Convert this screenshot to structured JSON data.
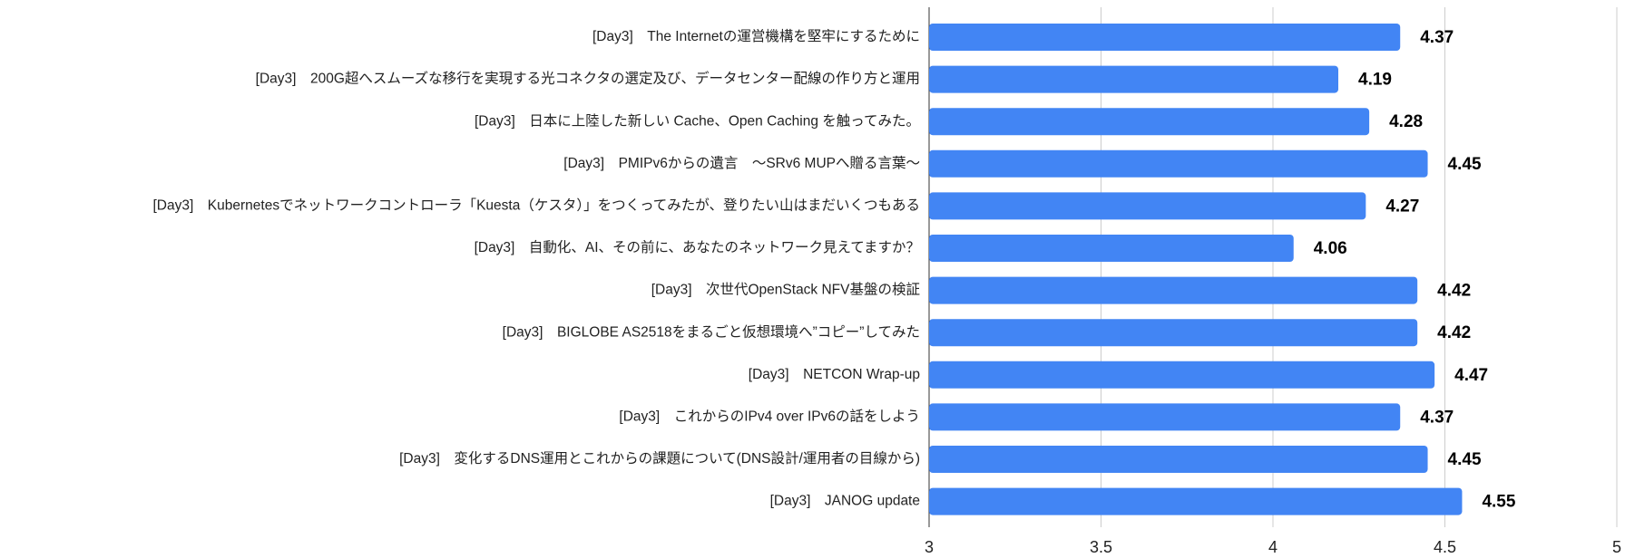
{
  "chart_data": {
    "type": "bar",
    "orientation": "horizontal",
    "categories": [
      "[Day3]　The Internetの運営機構を堅牢にするために",
      "[Day3]　200G超へスムーズな移行を実現する光コネクタの選定及び、データセンター配線の作り方と運用",
      "[Day3]　日本に上陸した新しい Cache、Open Caching を触ってみた。",
      "[Day3]　PMIPv6からの遺言　～SRv6 MUPへ贈る言葉～",
      "[Day3]　Kubernetesでネットワークコントローラ「Kuesta（ケスタ）」をつくってみたが、登りたい山はまだいくつもある",
      "[Day3]　自動化、AI、その前に、あなたのネットワーク見えてますか？",
      "[Day3]　次世代OpenStack NFV基盤の検証",
      "[Day3]　BIGLOBE AS2518をまるごと仮想環境へ”コピー”してみた",
      "[Day3]　NETCON Wrap-up",
      "[Day3]　これからのIPv4 over IPv6の話をしよう",
      "[Day3]　変化するDNS運用とこれからの課題について(DNS設計/運用者の目線から)",
      "[Day3]　JANOG update"
    ],
    "values": [
      4.37,
      4.19,
      4.28,
      4.45,
      4.27,
      4.06,
      4.42,
      4.42,
      4.47,
      4.37,
      4.45,
      4.55
    ],
    "color": "#4285f4",
    "xlim": [
      3,
      5
    ],
    "xticks": [
      3,
      3.5,
      4,
      4.5,
      5
    ],
    "grid": true
  }
}
